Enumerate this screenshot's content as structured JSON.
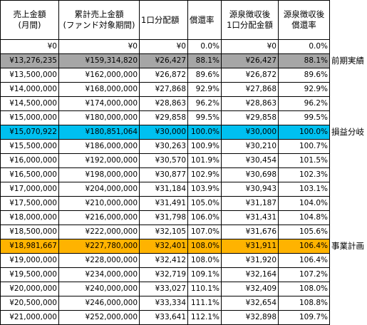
{
  "headers": [
    [
      "売上金額",
      "(月間)"
    ],
    [
      "累計売上金額",
      "(ファンド対象期間)"
    ],
    [
      "1口分配額"
    ],
    [
      "償還率"
    ],
    [
      "源泉徴収後",
      "1口分配金額"
    ],
    [
      "源泉徴収後",
      "償還率"
    ]
  ],
  "rows": [
    {
      "cells": [
        "¥0",
        "¥0",
        "¥0",
        "0.0%",
        "¥0",
        "0.0%"
      ],
      "highlight": "",
      "note": ""
    },
    {
      "cells": [
        "¥13,276,235",
        "¥159,314,820",
        "¥26,427",
        "88.1%",
        "¥26,427",
        "88.1%"
      ],
      "highlight": "gray",
      "note": "前期実績"
    },
    {
      "cells": [
        "¥13,500,000",
        "¥162,000,000",
        "¥26,872",
        "89.6%",
        "¥26,872",
        "89.6%"
      ],
      "highlight": "",
      "note": ""
    },
    {
      "cells": [
        "¥14,000,000",
        "¥168,000,000",
        "¥27,868",
        "92.9%",
        "¥27,868",
        "92.9%"
      ],
      "highlight": "",
      "note": ""
    },
    {
      "cells": [
        "¥14,500,000",
        "¥174,000,000",
        "¥28,863",
        "96.2%",
        "¥28,863",
        "96.2%"
      ],
      "highlight": "",
      "note": ""
    },
    {
      "cells": [
        "¥15,000,000",
        "¥180,000,000",
        "¥29,858",
        "99.5%",
        "¥29,858",
        "99.5%"
      ],
      "highlight": "",
      "note": ""
    },
    {
      "cells": [
        "¥15,070,922",
        "¥180,851,064",
        "¥30,000",
        "100.0%",
        "¥30,000",
        "100.0%"
      ],
      "highlight": "cyan",
      "note": "損益分岐"
    },
    {
      "cells": [
        "¥15,500,000",
        "¥186,000,000",
        "¥30,263",
        "100.9%",
        "¥30,210",
        "100.7%"
      ],
      "highlight": "",
      "note": ""
    },
    {
      "cells": [
        "¥16,000,000",
        "¥192,000,000",
        "¥30,570",
        "101.9%",
        "¥30,454",
        "101.5%"
      ],
      "highlight": "",
      "note": ""
    },
    {
      "cells": [
        "¥16,500,000",
        "¥198,000,000",
        "¥30,877",
        "102.9%",
        "¥30,698",
        "102.3%"
      ],
      "highlight": "",
      "note": ""
    },
    {
      "cells": [
        "¥17,000,000",
        "¥204,000,000",
        "¥31,184",
        "103.9%",
        "¥30,943",
        "103.1%"
      ],
      "highlight": "",
      "note": ""
    },
    {
      "cells": [
        "¥17,500,000",
        "¥210,000,000",
        "¥31,491",
        "105.0%",
        "¥31,187",
        "104.0%"
      ],
      "highlight": "",
      "note": ""
    },
    {
      "cells": [
        "¥18,000,000",
        "¥216,000,000",
        "¥31,798",
        "106.0%",
        "¥31,431",
        "104.8%"
      ],
      "highlight": "",
      "note": ""
    },
    {
      "cells": [
        "¥18,500,000",
        "¥222,000,000",
        "¥32,105",
        "107.0%",
        "¥31,676",
        "105.6%"
      ],
      "highlight": "",
      "note": ""
    },
    {
      "cells": [
        "¥18,981,667",
        "¥227,780,000",
        "¥32,401",
        "108.0%",
        "¥31,911",
        "106.4%"
      ],
      "highlight": "orange",
      "note": "事業計画"
    },
    {
      "cells": [
        "¥19,000,000",
        "¥228,000,000",
        "¥32,412",
        "108.0%",
        "¥31,920",
        "106.4%"
      ],
      "highlight": "",
      "note": ""
    },
    {
      "cells": [
        "¥19,500,000",
        "¥234,000,000",
        "¥32,719",
        "109.1%",
        "¥32,164",
        "107.2%"
      ],
      "highlight": "",
      "note": ""
    },
    {
      "cells": [
        "¥20,000,000",
        "¥240,000,000",
        "¥33,027",
        "110.1%",
        "¥32,409",
        "108.0%"
      ],
      "highlight": "",
      "note": ""
    },
    {
      "cells": [
        "¥20,500,000",
        "¥246,000,000",
        "¥33,334",
        "111.1%",
        "¥32,654",
        "108.8%"
      ],
      "highlight": "",
      "note": ""
    },
    {
      "cells": [
        "¥21,000,000",
        "¥252,000,000",
        "¥33,641",
        "112.1%",
        "¥32,898",
        "109.7%"
      ],
      "highlight": "",
      "note": ""
    }
  ]
}
